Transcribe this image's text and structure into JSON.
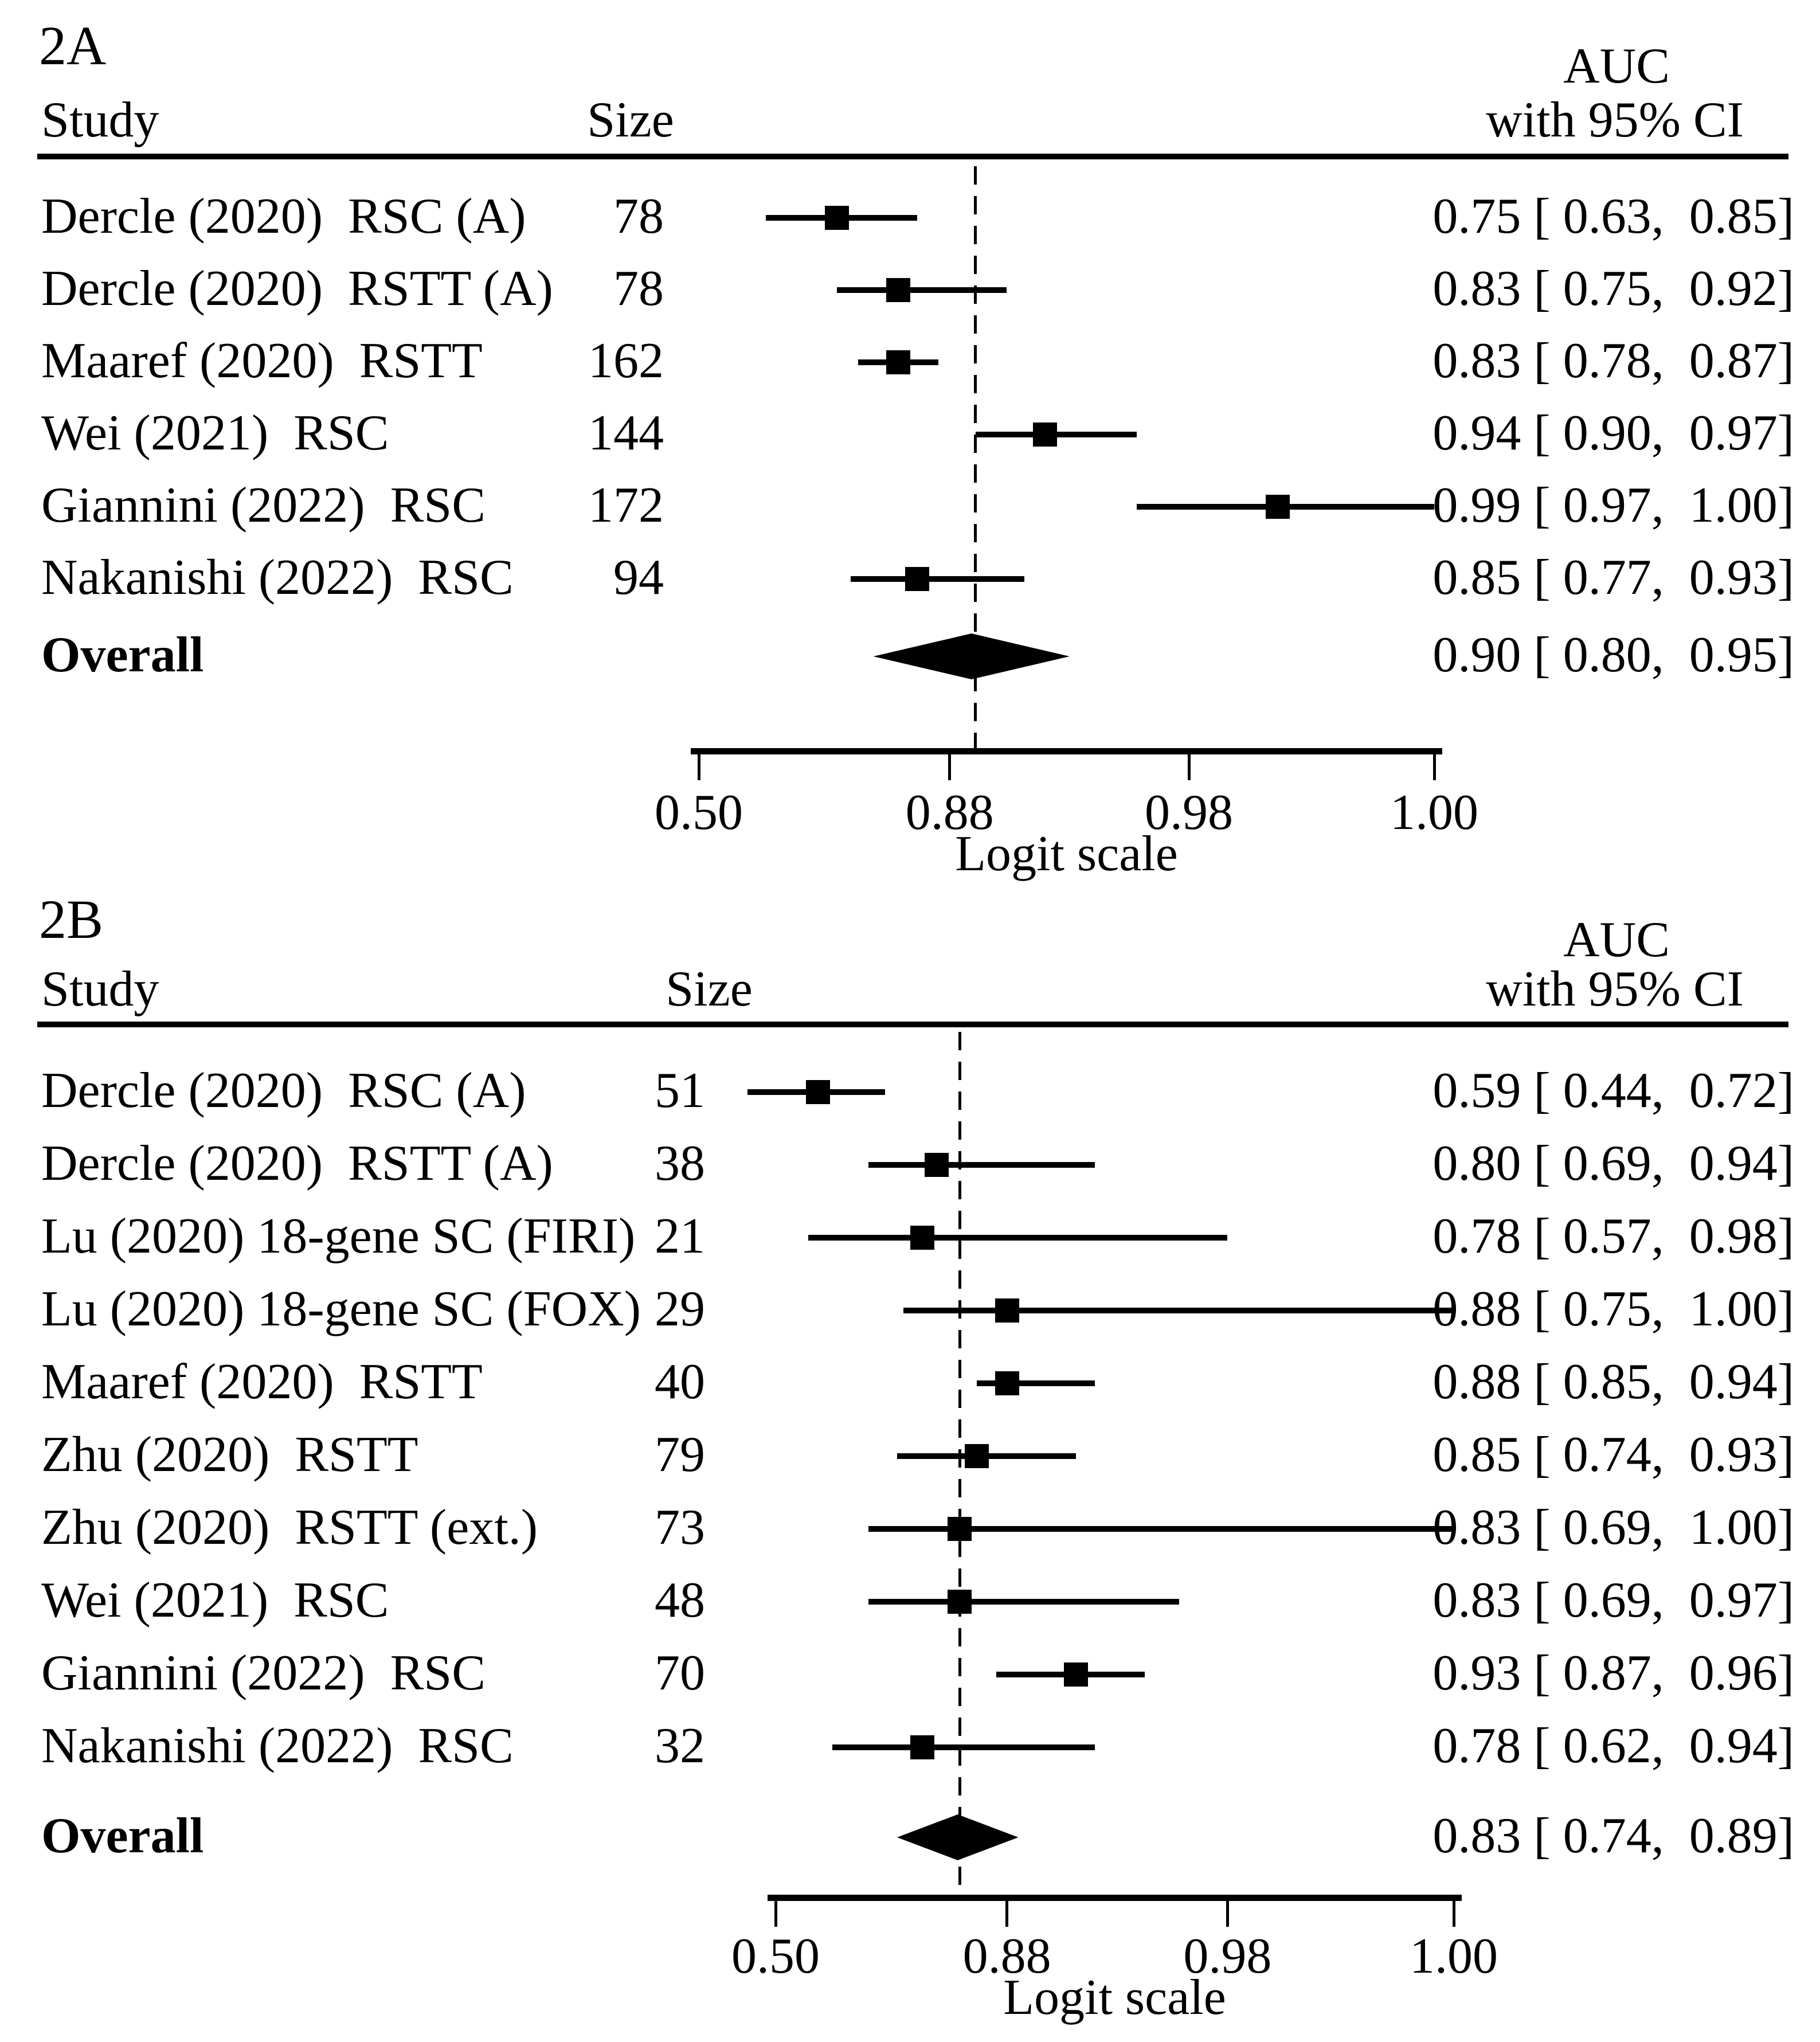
{
  "figure": {
    "background": "#ffffff",
    "ink_color": "#000000"
  },
  "chart_data": [
    {
      "type": "forest",
      "panel_label": "2A",
      "header": {
        "study": "Study",
        "size": "Size",
        "effect_top": "AUC",
        "effect_bottom": "with 95% CI"
      },
      "axis": {
        "scale": "logit",
        "scale_label": "Logit scale",
        "tick_values": [
          0.5,
          0.88,
          0.98,
          1.0
        ],
        "tick_labels": [
          "0.50",
          "0.88",
          "0.98",
          "1.00"
        ],
        "xlim": [
          0.5,
          1.0
        ],
        "reference_line_at_overall": true
      },
      "studies": [
        {
          "label": "Dercle (2020)  RSC (A)",
          "size": "78",
          "est": 0.75,
          "lo": 0.63,
          "hi": 0.85,
          "auc_text": "0.75 [ 0.63,  0.85]"
        },
        {
          "label": "Dercle (2020)  RSTT (A)",
          "size": "78",
          "est": 0.83,
          "lo": 0.75,
          "hi": 0.92,
          "auc_text": "0.83 [ 0.75,  0.92]"
        },
        {
          "label": "Maaref (2020)  RSTT",
          "size": "162",
          "est": 0.83,
          "lo": 0.78,
          "hi": 0.87,
          "auc_text": "0.83 [ 0.78,  0.87]"
        },
        {
          "label": "Wei (2021)  RSC",
          "size": "144",
          "est": 0.94,
          "lo": 0.9,
          "hi": 0.97,
          "auc_text": "0.94 [ 0.90,  0.97]"
        },
        {
          "label": "Giannini (2022)  RSC",
          "size": "172",
          "est": 0.99,
          "lo": 0.97,
          "hi": 1.0,
          "auc_text": "0.99 [ 0.97,  1.00]"
        },
        {
          "label": "Nakanishi (2022)  RSC",
          "size": "94",
          "est": 0.85,
          "lo": 0.77,
          "hi": 0.93,
          "auc_text": "0.85 [ 0.77,  0.93]"
        }
      ],
      "overall": {
        "label": "Overall",
        "est": 0.9,
        "lo": 0.8,
        "hi": 0.95,
        "auc_text": "0.90 [ 0.80,  0.95]"
      }
    },
    {
      "type": "forest",
      "panel_label": "2B",
      "header": {
        "study": "Study",
        "size": "Size",
        "effect_top": "AUC",
        "effect_bottom": "with 95% CI"
      },
      "axis": {
        "scale": "logit",
        "scale_label": "Logit scale",
        "tick_values": [
          0.5,
          0.88,
          0.98,
          1.0
        ],
        "tick_labels": [
          "0.50",
          "0.88",
          "0.98",
          "1.00"
        ],
        "xlim": [
          0.5,
          1.0
        ],
        "reference_line_at_overall": true
      },
      "studies": [
        {
          "label": "Dercle (2020)  RSC (A)",
          "size": "51",
          "est": 0.59,
          "lo": 0.44,
          "hi": 0.72,
          "auc_text": "0.59 [ 0.44,  0.72]"
        },
        {
          "label": "Dercle (2020)  RSTT (A)",
          "size": "38",
          "est": 0.8,
          "lo": 0.69,
          "hi": 0.94,
          "auc_text": "0.80 [ 0.69,  0.94]"
        },
        {
          "label": "Lu (2020) 18-gene SC (FIRI)",
          "size": "21",
          "est": 0.78,
          "lo": 0.57,
          "hi": 0.98,
          "auc_text": "0.78 [ 0.57,  0.98]"
        },
        {
          "label": "Lu (2020) 18-gene SC (FOX)",
          "size": "29",
          "est": 0.88,
          "lo": 0.75,
          "hi": 1.0,
          "auc_text": "0.88 [ 0.75,  1.00]"
        },
        {
          "label": "Maaref (2020)  RSTT",
          "size": "40",
          "est": 0.88,
          "lo": 0.85,
          "hi": 0.94,
          "auc_text": "0.88 [ 0.85,  0.94]"
        },
        {
          "label": "Zhu (2020)  RSTT",
          "size": "79",
          "est": 0.85,
          "lo": 0.74,
          "hi": 0.93,
          "auc_text": "0.85 [ 0.74,  0.93]"
        },
        {
          "label": "Zhu (2020)  RSTT (ext.)",
          "size": "73",
          "est": 0.83,
          "lo": 0.69,
          "hi": 1.0,
          "auc_text": "0.83 [ 0.69,  1.00]"
        },
        {
          "label": "Wei (2021)  RSC",
          "size": "48",
          "est": 0.83,
          "lo": 0.69,
          "hi": 0.97,
          "auc_text": "0.83 [ 0.69,  0.97]"
        },
        {
          "label": "Giannini (2022)  RSC",
          "size": "70",
          "est": 0.93,
          "lo": 0.87,
          "hi": 0.96,
          "auc_text": "0.93 [ 0.87,  0.96]"
        },
        {
          "label": "Nakanishi (2022)  RSC",
          "size": "32",
          "est": 0.78,
          "lo": 0.62,
          "hi": 0.94,
          "auc_text": "0.78 [ 0.62,  0.94]"
        }
      ],
      "overall": {
        "label": "Overall",
        "est": 0.83,
        "lo": 0.74,
        "hi": 0.89,
        "auc_text": "0.83 [ 0.74,  0.89]"
      }
    }
  ]
}
